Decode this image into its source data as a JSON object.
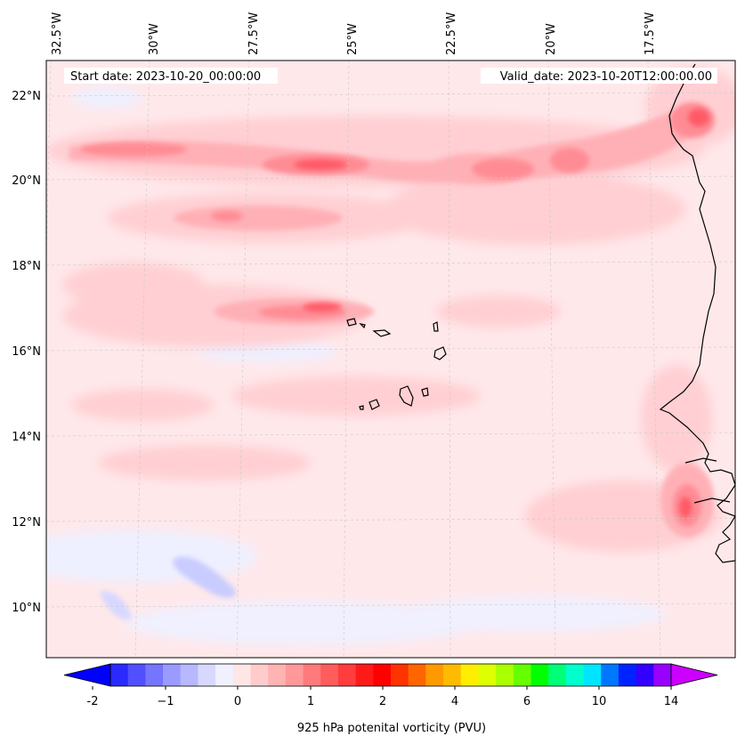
{
  "header": {
    "start_date": "Start date: 2023-10-20_00:00:00",
    "valid_date": "Valid_date: 2023-10-20T12:00:00.00"
  },
  "map": {
    "lon_labels": [
      "32.5°W",
      "30°W",
      "27.5°W",
      "25°W",
      "22.5°W",
      "20°W",
      "17.5°W"
    ],
    "lat_labels": [
      "22°N",
      "20°N",
      "18°N",
      "16°N",
      "14°N",
      "12°N",
      "10°N"
    ],
    "lon_range": [
      -33,
      -15.5
    ],
    "lat_range": [
      8.9,
      22.8
    ],
    "gridlines": true
  },
  "colorbar": {
    "label": "925 hPa potenital vorticity (PVU)",
    "ticks": [
      "-2",
      "−1",
      "0",
      "1",
      "2",
      "4",
      "6",
      "10",
      "14"
    ],
    "colors": [
      "#0000ff",
      "#2a2aff",
      "#5050ff",
      "#7575ff",
      "#9a9aff",
      "#b8b8ff",
      "#d8d8ff",
      "#f0f0ff",
      "#ffe6e6",
      "#ffcccc",
      "#ffb3b3",
      "#ff9999",
      "#ff7a7a",
      "#ff5c5c",
      "#ff3d3d",
      "#ff1a1a",
      "#ff0000",
      "#ff3300",
      "#ff6600",
      "#ff9900",
      "#ffbb00",
      "#ffee00",
      "#ddff00",
      "#aaff00",
      "#66ff00",
      "#00ff00",
      "#00ff77",
      "#00ffcc",
      "#00e5ff",
      "#0077ff",
      "#0022ff",
      "#3300ff",
      "#9900ff",
      "#cc00ff"
    ]
  }
}
